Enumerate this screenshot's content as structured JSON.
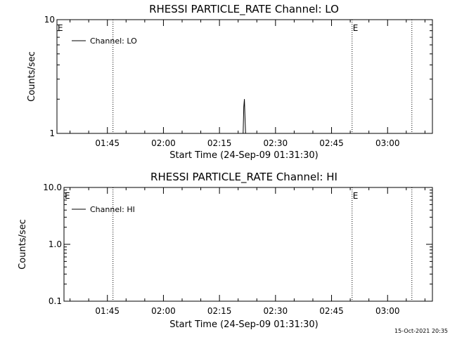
{
  "colors": {
    "background": "#ffffff",
    "foreground": "#000000"
  },
  "footer": {
    "timestamp": "15-Oct-2021 20:35"
  },
  "chart_data": [
    {
      "type": "line",
      "title": "RHESSI PARTICLE_RATE Channel: LO",
      "xlabel": "Start Time (24-Sep-09 01:31:30)",
      "ylabel": "Counts/sec",
      "y_scale": "log",
      "ylim": [
        1,
        10
      ],
      "y_ticks": [
        {
          "value": 1,
          "label": "1"
        },
        {
          "value": 10,
          "label": "10"
        }
      ],
      "xlim": [
        "01:31:30",
        "03:12:00"
      ],
      "x_ticks": [
        "01:45",
        "02:00",
        "02:15",
        "02:30",
        "02:45",
        "03:00"
      ],
      "legend": {
        "location": "top-left",
        "entries": [
          "Channel: LO"
        ]
      },
      "event_markers": [
        {
          "time": "01:31:30",
          "label": "E"
        },
        {
          "time": "01:46:30",
          "label": ""
        },
        {
          "time": "02:50:30",
          "label": "E"
        },
        {
          "time": "03:06:30",
          "label": ""
        }
      ],
      "series": [
        {
          "name": "Channel: LO",
          "x": [
            "02:21:00",
            "02:21:20",
            "02:21:30",
            "02:21:40",
            "02:21:50",
            "02:22:00",
            "02:22:10"
          ],
          "values": [
            1,
            1,
            1.7,
            2,
            1.4,
            1,
            1
          ]
        }
      ]
    },
    {
      "type": "line",
      "title": "RHESSI PARTICLE_RATE Channel: HI",
      "xlabel": "Start Time (24-Sep-09 01:31:30)",
      "ylabel": "Counts/sec",
      "y_scale": "log",
      "ylim": [
        0.1,
        10
      ],
      "y_ticks": [
        {
          "value": 0.1,
          "label": "0.1"
        },
        {
          "value": 1,
          "label": "1.0"
        },
        {
          "value": 10,
          "label": "10.0"
        }
      ],
      "xlim": [
        "01:31:30",
        "03:12:00"
      ],
      "x_ticks": [
        "01:45",
        "02:00",
        "02:15",
        "02:30",
        "02:45",
        "03:00"
      ],
      "legend": {
        "location": "top-left",
        "entries": [
          "Channel: HI"
        ]
      },
      "event_markers": [
        {
          "time": "01:31:30",
          "label": "E"
        },
        {
          "time": "01:46:30",
          "label": ""
        },
        {
          "time": "02:50:30",
          "label": "E"
        },
        {
          "time": "03:06:30",
          "label": ""
        }
      ],
      "series": [
        {
          "name": "Channel: HI",
          "x": [],
          "values": []
        }
      ]
    }
  ]
}
